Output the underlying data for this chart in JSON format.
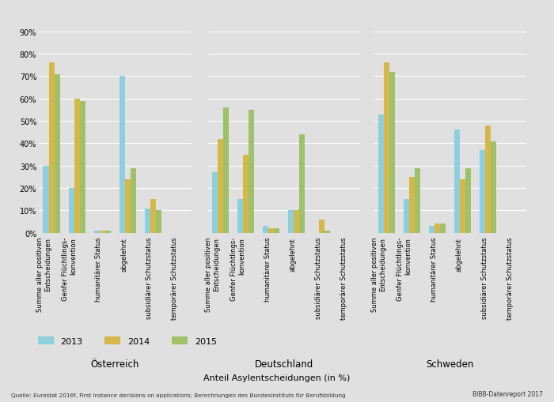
{
  "background_color": "#e0e0e0",
  "plot_bg_color": "#e0e0e0",
  "bar_colors": [
    "#8dcfdc",
    "#d4b84a",
    "#9ec16a"
  ],
  "legend_labels": [
    "2013",
    "2014",
    "2015"
  ],
  "countries": [
    "Österreich",
    "Deutschland",
    "Schweden"
  ],
  "categories": [
    "Summe aller positiven\nEntscheidungen",
    "Genfer Flüchtlings-\nkonvention",
    "humanitärer Status",
    "abgelehnt",
    "subsidiärer Schutzstatus",
    "temporärer Schutzstatus"
  ],
  "data": {
    "Österreich": {
      "2013": [
        30,
        20,
        1,
        70,
        11,
        0
      ],
      "2014": [
        76,
        60,
        1,
        24,
        15,
        0
      ],
      "2015": [
        71,
        59,
        1,
        29,
        10,
        0
      ]
    },
    "Deutschland": {
      "2013": [
        27,
        15,
        3,
        10,
        0,
        0
      ],
      "2014": [
        42,
        35,
        2,
        10,
        6,
        0
      ],
      "2015": [
        56,
        55,
        2,
        44,
        1,
        0
      ]
    },
    "Schweden": {
      "2013": [
        53,
        15,
        3,
        46,
        37,
        0
      ],
      "2014": [
        76,
        25,
        4,
        24,
        48,
        0
      ],
      "2015": [
        72,
        29,
        4,
        29,
        41,
        0
      ]
    }
  },
  "xlabel": "Anteil Asylentscheidungen (in %)",
  "ylim": [
    0,
    90
  ],
  "yticks": [
    0,
    10,
    20,
    30,
    40,
    50,
    60,
    70,
    80,
    90
  ],
  "footer_left": "Quelle: Eurostat 2016f, First instance decisions on applications; Berechnungen des Bundesinstituts für Berufsbildung",
  "footer_right": "BIBB-Datenreport 2017"
}
